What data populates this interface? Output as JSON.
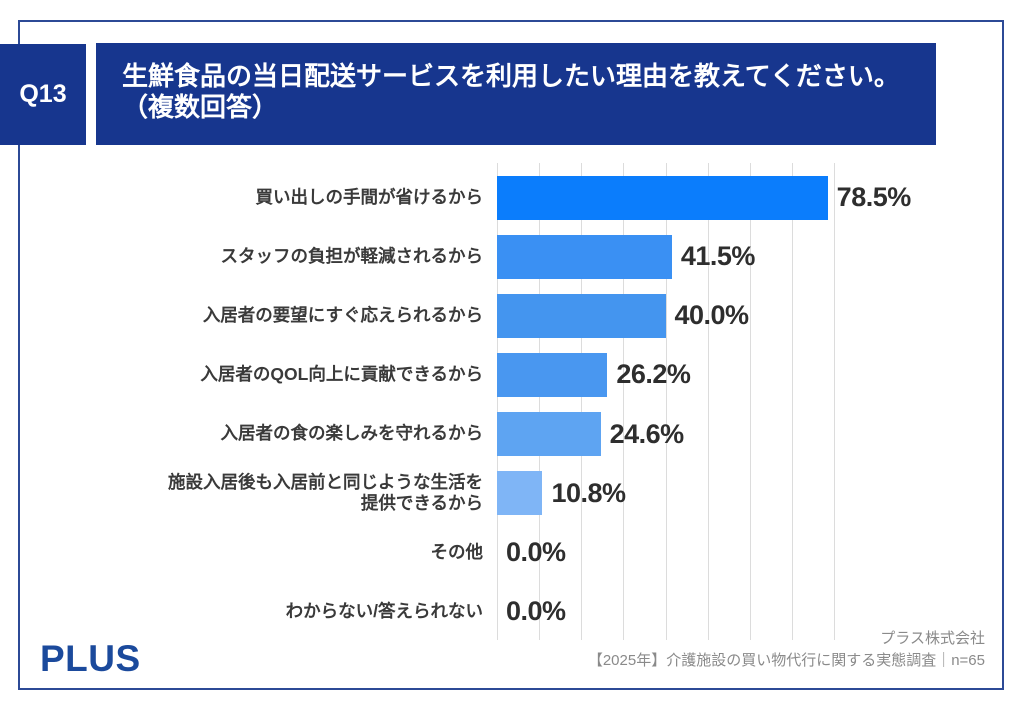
{
  "question": {
    "number": "Q13",
    "title": "生鮮食品の当日配送サービスを利用したい理由を教えてください。\n（複数回答）"
  },
  "chart_data": {
    "type": "bar",
    "orientation": "horizontal",
    "title": "生鮮食品の当日配送サービスを利用したい理由（複数回答）",
    "xlabel": "",
    "ylabel": "",
    "categories": [
      "買い出しの手間が省けるから",
      "スタッフの負担が軽減されるから",
      "入居者の要望にすぐ応えられるから",
      "入居者のQOL向上に貢献できるから",
      "入居者の食の楽しみを守れるから",
      "施設入居後も入居前と同じような生活を\n提供できるから",
      "その他",
      "わからない/答えられない"
    ],
    "values": [
      78.5,
      41.5,
      40.0,
      26.2,
      24.6,
      10.8,
      0.0,
      0.0
    ],
    "value_labels": [
      "78.5%",
      "41.5%",
      "40.0%",
      "26.2%",
      "24.6%",
      "10.8%",
      "0.0%",
      "0.0%"
    ],
    "bar_colors": [
      "#0b7dfc",
      "#3a90f3",
      "#4495ef",
      "#4997f0",
      "#5ea4f2",
      "#7fb5f6"
    ],
    "xlim": [
      0,
      80
    ],
    "gridline_step": 10,
    "grid": true,
    "legend": "none"
  },
  "footer": {
    "logo": "PLUS",
    "company": "プラス株式会社",
    "survey": "【2025年】介護施設の買い物代行に関する実態調査｜n=65"
  },
  "colors": {
    "banner_navy": "#17368e",
    "frame_border": "#2c4a96",
    "logo_blue": "#1b4a9c",
    "value_text": "#2e2e2e",
    "category_text": "#3a3a3a",
    "gridline": "#dcdcdc",
    "footer_text": "#8a8a8a"
  }
}
